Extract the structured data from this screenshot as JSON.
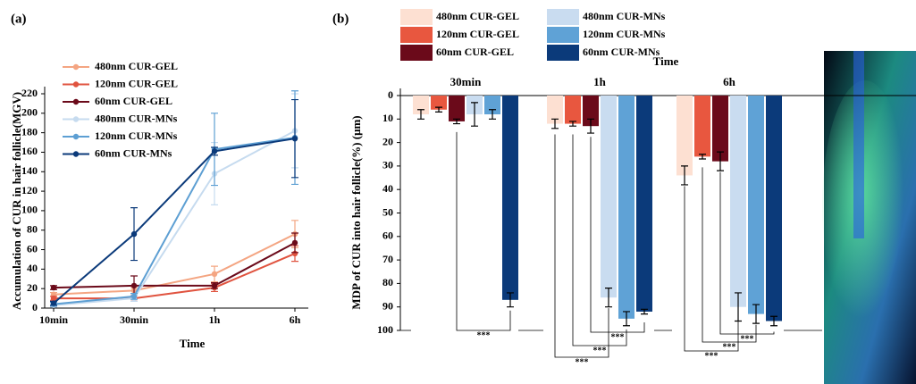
{
  "chart_data": [
    {
      "type": "line",
      "panel": "(a)",
      "xlabel": "Time",
      "ylabel": "Accumulation of CUR in hair follicle(MGV)",
      "categories": [
        "10min",
        "30min",
        "1h",
        "6h"
      ],
      "ylim": [
        0,
        220
      ],
      "yticks": [
        0,
        20,
        40,
        60,
        80,
        100,
        120,
        140,
        160,
        180,
        200,
        220
      ],
      "series": [
        {
          "name": "480nm CUR-GEL",
          "color": "#f4a582",
          "values": [
            14,
            18,
            35,
            76
          ],
          "errors": [
            2,
            3,
            8,
            14
          ]
        },
        {
          "name": "120nm CUR-GEL",
          "color": "#e0533f",
          "values": [
            10,
            10,
            21,
            56
          ],
          "errors": [
            2,
            3,
            4,
            8
          ]
        },
        {
          "name": "60nm CUR-GEL",
          "color": "#6b0a1a",
          "values": [
            21,
            23,
            23,
            67
          ],
          "errors": [
            2,
            10,
            3,
            10
          ]
        },
        {
          "name": "480nm CUR-MNs",
          "color": "#c6dbef",
          "values": [
            3,
            10,
            138,
            182
          ],
          "errors": [
            2,
            3,
            32,
            38
          ]
        },
        {
          "name": "120nm CUR-MNs",
          "color": "#5d9fd3",
          "values": [
            4,
            12,
            163,
            175
          ],
          "errors": [
            2,
            3,
            37,
            48
          ]
        },
        {
          "name": "60nm CUR-MNs",
          "color": "#0b3a7a",
          "values": [
            5,
            76,
            161,
            174
          ],
          "errors": [
            2,
            27,
            4,
            40
          ]
        }
      ]
    },
    {
      "type": "bar",
      "panel": "(b)",
      "xlabel": "Time",
      "ylabel": "MDP of CUR into hair follicle(%) (μm)",
      "categories": [
        "30min",
        "1h",
        "6h"
      ],
      "ylim": [
        0,
        100
      ],
      "y_inverted": true,
      "yticks": [
        0,
        10,
        20,
        30,
        40,
        50,
        60,
        70,
        80,
        90,
        100
      ],
      "series": [
        {
          "name": "480nm CUR-GEL",
          "color": "#fde0d2",
          "values": [
            8,
            12,
            34
          ],
          "errors": [
            2,
            2,
            4
          ]
        },
        {
          "name": "120nm CUR-GEL",
          "color": "#e8573f",
          "values": [
            6,
            12,
            26
          ],
          "errors": [
            1,
            1,
            1
          ]
        },
        {
          "name": "60nm CUR-GEL",
          "color": "#6b0a1a",
          "values": [
            11,
            13,
            28
          ],
          "errors": [
            1,
            3,
            4
          ]
        },
        {
          "name": "480nm CUR-MNs",
          "color": "#c9dcf0",
          "values": [
            8,
            86,
            90
          ],
          "errors": [
            5,
            4,
            6
          ]
        },
        {
          "name": "120nm CUR-MNs",
          "color": "#5fa2d6",
          "values": [
            8,
            95,
            93
          ],
          "errors": [
            2,
            3,
            4
          ]
        },
        {
          "name": "60nm CUR-MNs",
          "color": "#0b3a7a",
          "values": [
            87,
            92,
            96
          ],
          "errors": [
            3,
            1,
            2
          ]
        }
      ],
      "annotations": [
        "***",
        "***",
        "***",
        "***",
        "***",
        "***",
        "***"
      ]
    }
  ]
}
